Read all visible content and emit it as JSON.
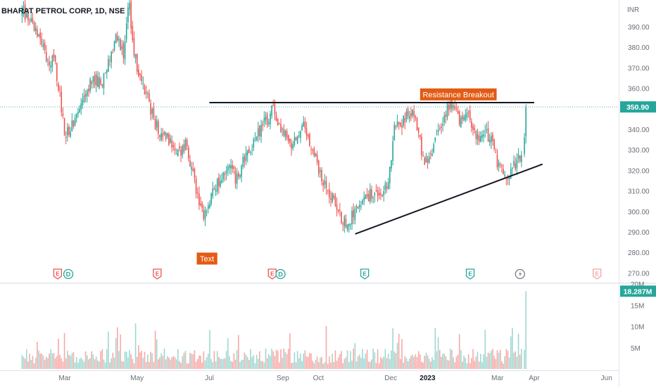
{
  "header": {
    "symbol_title": "BHARAT PETROL CORP, 1D, NSE",
    "currency": "INR"
  },
  "chart_data": {
    "type": "candlestick",
    "price_axis": {
      "ticks": [
        270,
        280,
        290,
        300,
        310,
        320,
        330,
        340,
        350,
        360,
        370,
        380,
        390
      ],
      "tick_labels": [
        "270.00",
        "280.00",
        "290.00",
        "300.00",
        "310.00",
        "320.00",
        "330.00",
        "340.00",
        "350.00",
        "360.00",
        "370.00",
        "380.00",
        "390.00"
      ],
      "range": [
        265,
        403
      ]
    },
    "volume_axis": {
      "ticks": [
        5,
        10,
        15,
        20
      ],
      "tick_labels": [
        "5M",
        "10M",
        "15M",
        "20M"
      ],
      "range": [
        0,
        20
      ]
    },
    "time_axis": {
      "labels": [
        "Mar",
        "May",
        "Jul",
        "Sep",
        "Oct",
        "Dec",
        "2023",
        "Mar",
        "Apr",
        "Jun"
      ],
      "label_dates": [
        "2022-03-01",
        "2022-05-01",
        "2022-07-01",
        "2022-09-01",
        "2022-10-01",
        "2022-12-01",
        "2023-01-01",
        "2023-03-01",
        "2023-04-01",
        "2023-06-01"
      ],
      "bold_labels": [
        "2023"
      ]
    },
    "last_price": {
      "value": 350.9,
      "label": "350.90",
      "color": "#26a69a"
    },
    "last_volume": {
      "value": 18.287,
      "label": "18.287M",
      "color": "#26a69a"
    },
    "price_path": [
      [
        "2022-01-24",
        398
      ],
      [
        "2022-01-29",
        394
      ],
      [
        "2022-02-05",
        387
      ],
      [
        "2022-02-10",
        382
      ],
      [
        "2022-02-15",
        372
      ],
      [
        "2022-02-20",
        376
      ],
      [
        "2022-02-25",
        356
      ],
      [
        "2022-03-01",
        337
      ],
      [
        "2022-03-06",
        340
      ],
      [
        "2022-03-12",
        350
      ],
      [
        "2022-03-18",
        358
      ],
      [
        "2022-03-25",
        365
      ],
      [
        "2022-04-01",
        362
      ],
      [
        "2022-04-08",
        375
      ],
      [
        "2022-04-14",
        385
      ],
      [
        "2022-04-20",
        377
      ],
      [
        "2022-04-24",
        402
      ],
      [
        "2022-04-29",
        375
      ],
      [
        "2022-05-04",
        365
      ],
      [
        "2022-05-10",
        355
      ],
      [
        "2022-05-16",
        343
      ],
      [
        "2022-05-22",
        337
      ],
      [
        "2022-05-29",
        334
      ],
      [
        "2022-06-05",
        328
      ],
      [
        "2022-06-11",
        333
      ],
      [
        "2022-06-16",
        320
      ],
      [
        "2022-06-21",
        307
      ],
      [
        "2022-06-26",
        297
      ],
      [
        "2022-07-01",
        305
      ],
      [
        "2022-07-06",
        312
      ],
      [
        "2022-07-12",
        318
      ],
      [
        "2022-07-18",
        324
      ],
      [
        "2022-07-23",
        316
      ],
      [
        "2022-07-28",
        322
      ],
      [
        "2022-08-03",
        330
      ],
      [
        "2022-08-09",
        336
      ],
      [
        "2022-08-15",
        342
      ],
      [
        "2022-08-20",
        345
      ],
      [
        "2022-08-24",
        352
      ],
      [
        "2022-08-29",
        342
      ],
      [
        "2022-09-04",
        338
      ],
      [
        "2022-09-09",
        332
      ],
      [
        "2022-09-14",
        337
      ],
      [
        "2022-09-19",
        344
      ],
      [
        "2022-09-24",
        333
      ],
      [
        "2022-09-29",
        326
      ],
      [
        "2022-10-04",
        315
      ],
      [
        "2022-10-09",
        311
      ],
      [
        "2022-10-14",
        305
      ],
      [
        "2022-10-19",
        298
      ],
      [
        "2022-10-25",
        294
      ],
      [
        "2022-10-30",
        298
      ],
      [
        "2022-11-04",
        302
      ],
      [
        "2022-11-09",
        305
      ],
      [
        "2022-11-14",
        309
      ],
      [
        "2022-11-19",
        308
      ],
      [
        "2022-11-24",
        310
      ],
      [
        "2022-11-29",
        312
      ],
      [
        "2022-12-04",
        342
      ],
      [
        "2022-12-09",
        341
      ],
      [
        "2022-12-14",
        346
      ],
      [
        "2022-12-19",
        349
      ],
      [
        "2022-12-24",
        338
      ],
      [
        "2022-12-29",
        325
      ],
      [
        "2023-01-04",
        328
      ],
      [
        "2023-01-09",
        340
      ],
      [
        "2023-01-14",
        345
      ],
      [
        "2023-01-19",
        352
      ],
      [
        "2023-01-24",
        349
      ],
      [
        "2023-01-29",
        344
      ],
      [
        "2023-02-03",
        350
      ],
      [
        "2023-02-08",
        340
      ],
      [
        "2023-02-13",
        334
      ],
      [
        "2023-02-18",
        338
      ],
      [
        "2023-02-23",
        336
      ],
      [
        "2023-02-28",
        325
      ],
      [
        "2023-03-05",
        319
      ],
      [
        "2023-03-10",
        318
      ],
      [
        "2023-03-15",
        322
      ],
      [
        "2023-03-20",
        326
      ],
      [
        "2023-03-23",
        336
      ],
      [
        "2023-03-25",
        350.9
      ]
    ],
    "resistance_line": {
      "start": [
        "2022-07-01",
        353
      ],
      "end": [
        "2023-04-01",
        353
      ]
    },
    "support_line": {
      "start": [
        "2022-11-01",
        289
      ],
      "end": [
        "2023-04-08",
        323
      ]
    },
    "annotations": [
      {
        "text": "Resistance Breakout",
        "date": "2023-01-27",
        "price": 357
      },
      {
        "text": "Text",
        "date": "2022-06-29",
        "price": 277
      }
    ],
    "events": [
      {
        "date": "2022-02-23",
        "kind": "E"
      },
      {
        "date": "2022-03-04",
        "kind": "D"
      },
      {
        "date": "2022-05-18",
        "kind": "E"
      },
      {
        "date": "2022-08-23",
        "kind": "E"
      },
      {
        "date": "2022-08-30",
        "kind": "D"
      },
      {
        "date": "2022-11-09",
        "kind": "E"
      },
      {
        "date": "2023-02-06",
        "kind": "E"
      },
      {
        "date": "2023-03-20",
        "kind": "split"
      },
      {
        "date": "2023-05-24",
        "kind": "E-future"
      }
    ],
    "colors": {
      "up": "#26a69a",
      "down": "#ef5350",
      "volume_up": "#9fd8d1",
      "volume_down": "#f7a9a7",
      "annotation_bg": "#e35b13",
      "trendline": "#131722"
    },
    "grid": false,
    "legend": "none"
  }
}
